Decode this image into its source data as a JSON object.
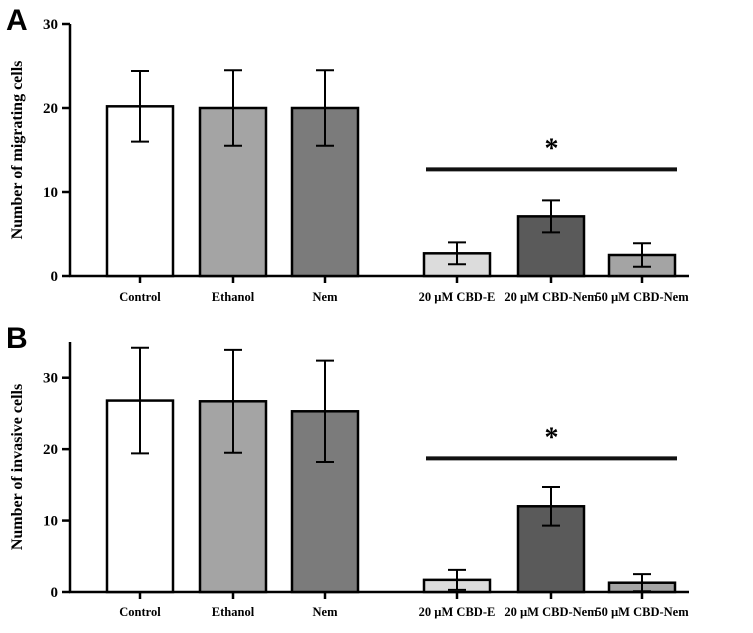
{
  "colors": {
    "axis": "#000000",
    "sig_line": "#111111"
  },
  "chart_data": [
    {
      "type": "bar",
      "panel": "A",
      "ylabel": "Number of migrating cells",
      "ylim": [
        0,
        30
      ],
      "yticks": [
        0,
        10,
        20,
        30
      ],
      "categories": [
        "Control",
        "Ethanol",
        "Nem",
        "20 µM CBD-E",
        "20 µM CBD-Nem",
        "50 µM CBD-Nem"
      ],
      "values": [
        20.2,
        20.0,
        20.0,
        2.7,
        7.1,
        2.5
      ],
      "errors": [
        4.2,
        4.5,
        4.5,
        1.3,
        1.9,
        1.4
      ],
      "bar_colors": [
        "#ffffff",
        "#a4a4a4",
        "#7b7b7b",
        "#dcdcdc",
        "#5a5a5a",
        "#a4a4a4"
      ],
      "significance": {
        "label": "*",
        "from": 3,
        "to": 5,
        "y": 12.7
      }
    },
    {
      "type": "bar",
      "panel": "B",
      "ylabel": "Number of invasive cells",
      "ylim": [
        0,
        35
      ],
      "yticks": [
        0,
        10,
        20,
        30
      ],
      "categories": [
        "Control",
        "Ethanol",
        "Nem",
        "20 µM CBD-E",
        "20 µM CBD-Nem",
        "50 µM CBD-Nem"
      ],
      "values": [
        26.8,
        26.7,
        25.3,
        1.7,
        12.0,
        1.3
      ],
      "errors": [
        7.4,
        7.2,
        7.1,
        1.4,
        2.7,
        1.2
      ],
      "bar_colors": [
        "#ffffff",
        "#a4a4a4",
        "#7b7b7b",
        "#dcdcdc",
        "#5a5a5a",
        "#a4a4a4"
      ],
      "significance": {
        "label": "*",
        "from": 3,
        "to": 5,
        "y": 18.7
      }
    }
  ]
}
